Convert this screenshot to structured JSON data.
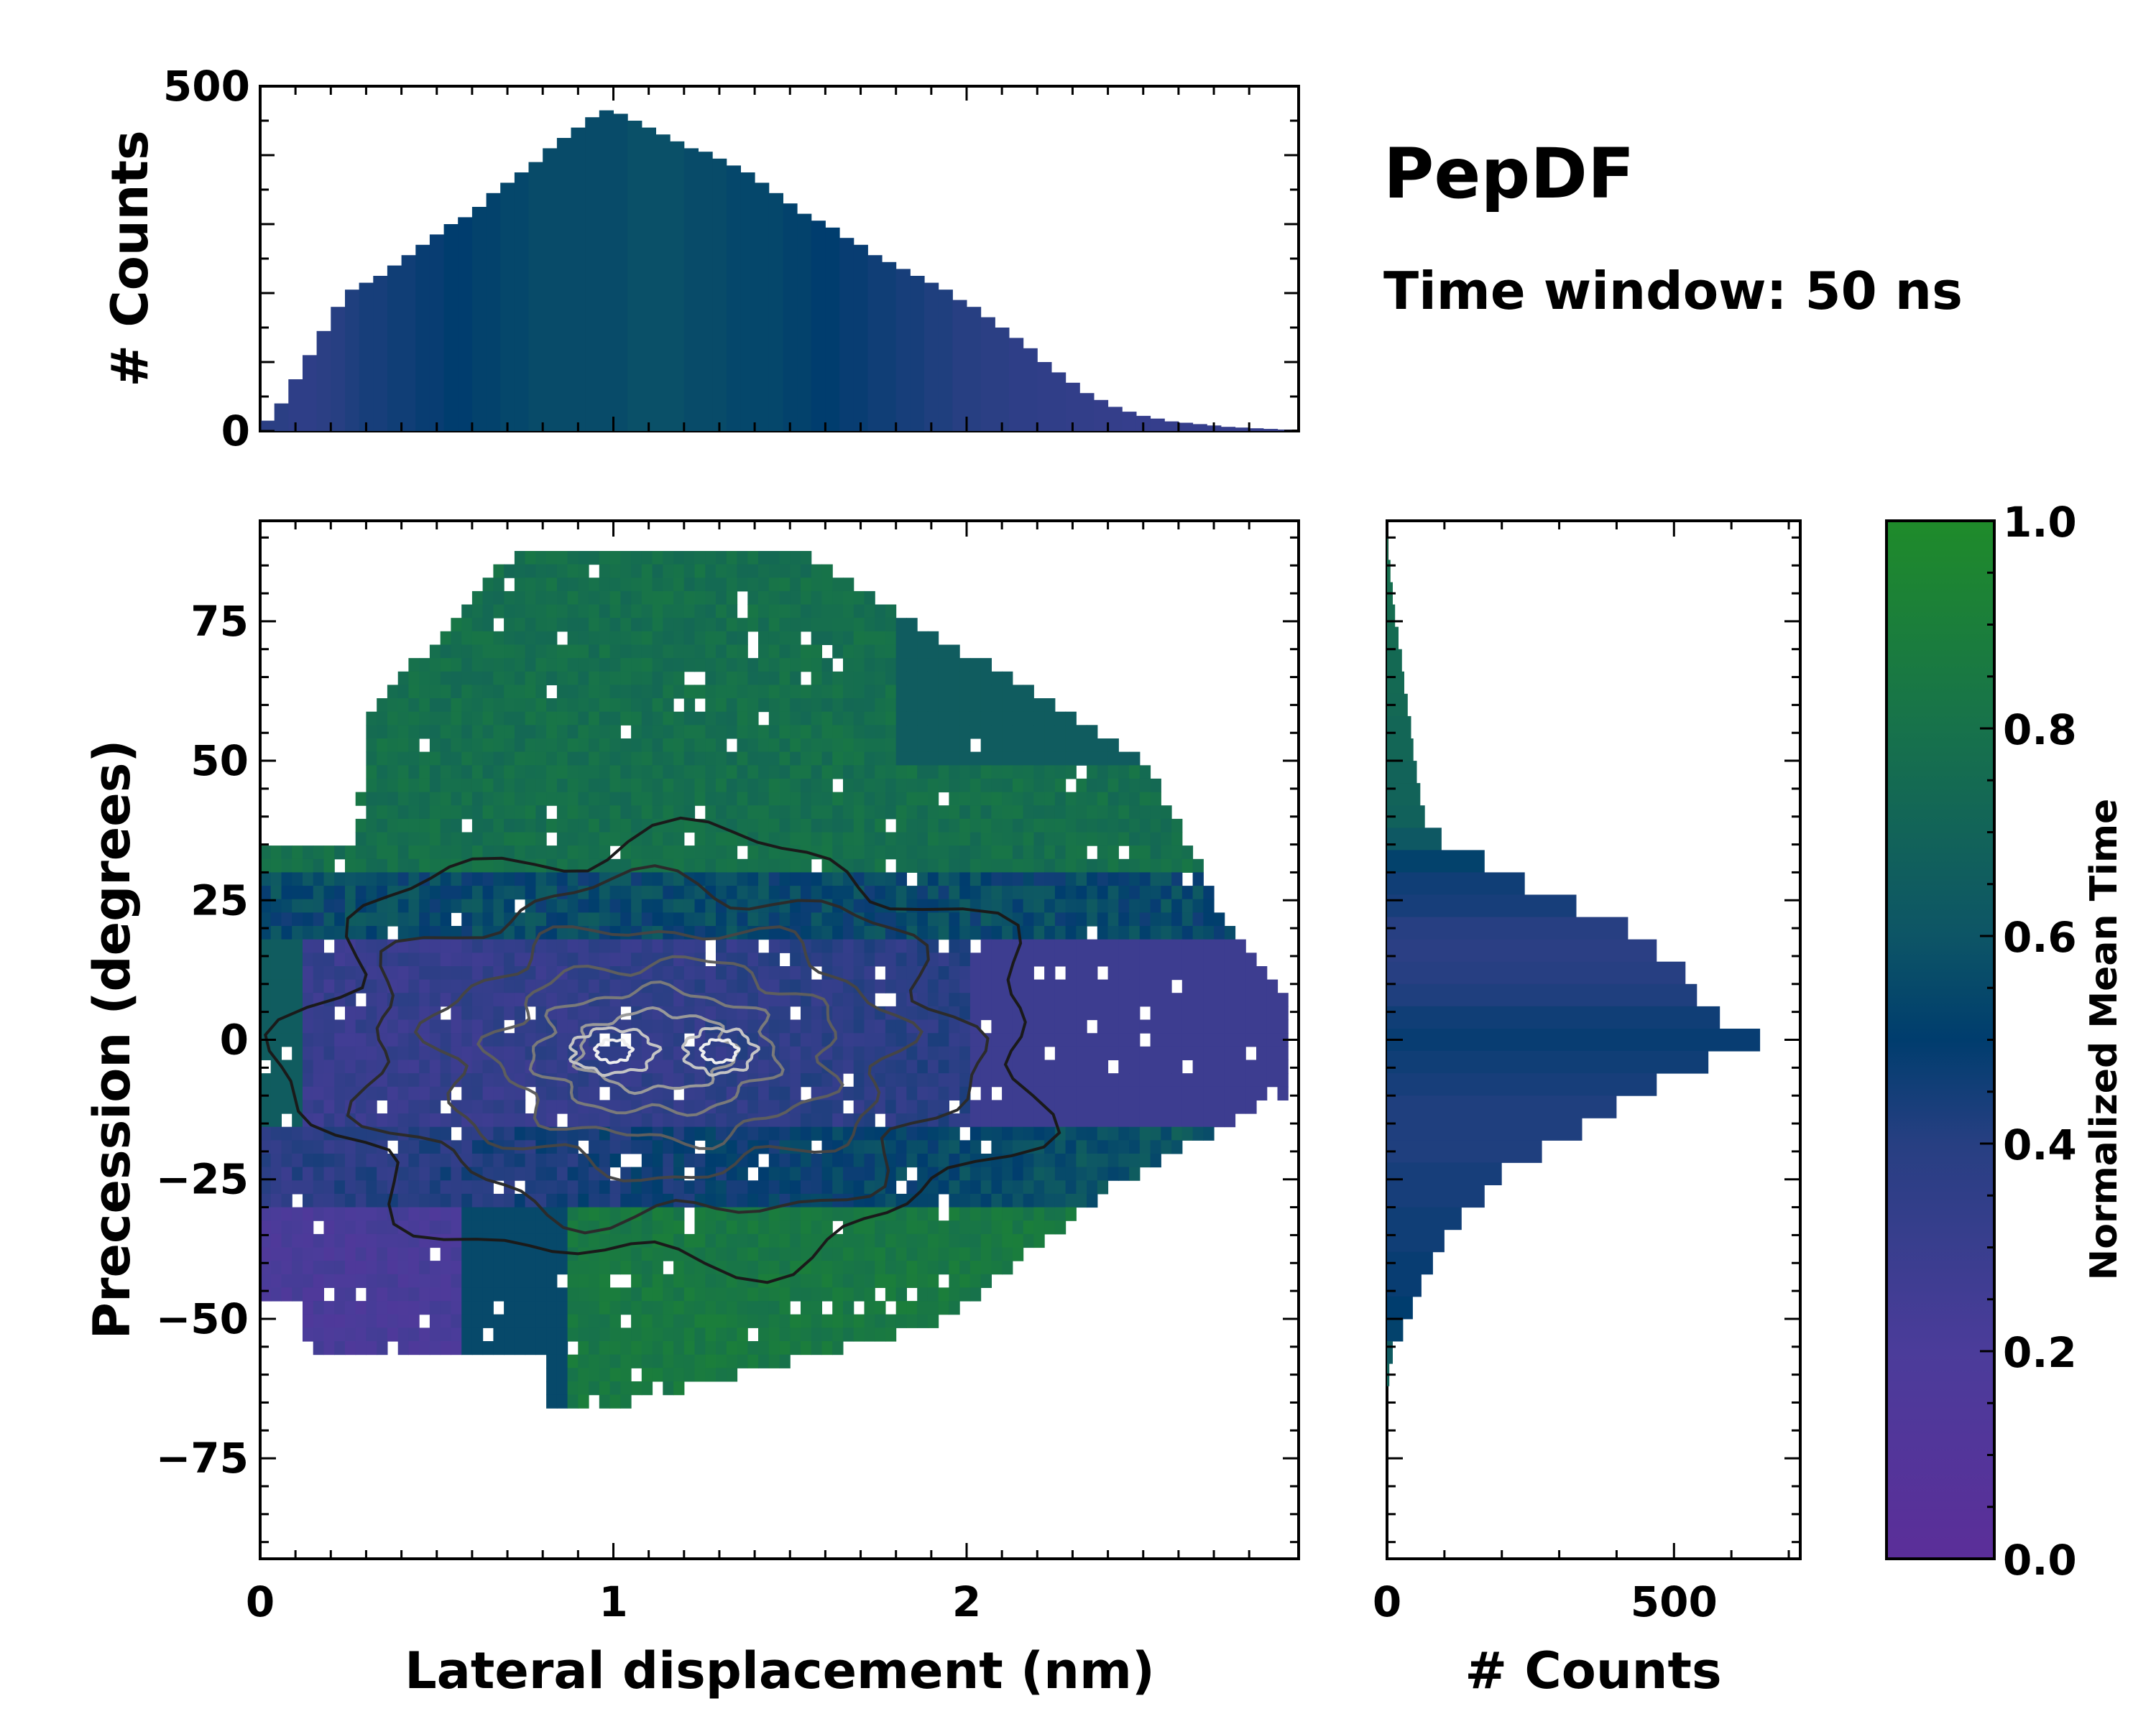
{
  "chart_data": [
    {
      "id": "marginal_x",
      "type": "bar",
      "ylabel": "# Counts",
      "xlim": [
        0,
        2.94
      ],
      "ylim": [
        0,
        500
      ],
      "yticks": [
        "0",
        "500"
      ],
      "color_note": "bars colored by normalized mean time (colormap viridis-like, dark blue/teal)",
      "x": [
        0.02,
        0.06,
        0.1,
        0.14,
        0.18,
        0.22,
        0.26,
        0.3,
        0.34,
        0.38,
        0.42,
        0.46,
        0.5,
        0.54,
        0.58,
        0.62,
        0.66,
        0.7,
        0.74,
        0.78,
        0.82,
        0.86,
        0.9,
        0.94,
        0.98,
        1.02,
        1.06,
        1.1,
        1.14,
        1.18,
        1.22,
        1.26,
        1.3,
        1.34,
        1.38,
        1.42,
        1.46,
        1.5,
        1.54,
        1.58,
        1.62,
        1.66,
        1.7,
        1.74,
        1.78,
        1.82,
        1.86,
        1.9,
        1.94,
        1.98,
        2.02,
        2.06,
        2.1,
        2.14,
        2.18,
        2.22,
        2.26,
        2.3,
        2.34,
        2.38,
        2.42,
        2.46,
        2.5,
        2.54,
        2.58,
        2.62,
        2.66,
        2.7,
        2.74,
        2.78,
        2.82,
        2.86,
        2.9
      ],
      "values": [
        15,
        40,
        75,
        110,
        145,
        180,
        205,
        215,
        225,
        240,
        255,
        270,
        285,
        300,
        310,
        325,
        345,
        360,
        375,
        390,
        410,
        425,
        440,
        455,
        465,
        460,
        450,
        440,
        430,
        420,
        410,
        405,
        395,
        385,
        375,
        360,
        345,
        330,
        315,
        305,
        295,
        280,
        270,
        255,
        245,
        235,
        225,
        215,
        205,
        190,
        180,
        165,
        150,
        135,
        120,
        100,
        85,
        70,
        55,
        45,
        35,
        28,
        22,
        18,
        14,
        12,
        10,
        8,
        6,
        5,
        4,
        3,
        2
      ],
      "bar_tone": [
        0.38,
        0.38,
        0.36,
        0.36,
        0.38,
        0.4,
        0.42,
        0.44,
        0.44,
        0.46,
        0.46,
        0.48,
        0.48,
        0.5,
        0.5,
        0.52,
        0.52,
        0.54,
        0.54,
        0.56,
        0.56,
        0.56,
        0.56,
        0.56,
        0.56,
        0.56,
        0.58,
        0.58,
        0.58,
        0.58,
        0.56,
        0.56,
        0.56,
        0.54,
        0.54,
        0.54,
        0.54,
        0.52,
        0.52,
        0.5,
        0.5,
        0.48,
        0.48,
        0.46,
        0.46,
        0.44,
        0.44,
        0.42,
        0.42,
        0.4,
        0.4,
        0.38,
        0.38,
        0.36,
        0.36,
        0.35,
        0.35,
        0.34,
        0.34,
        0.33,
        0.33,
        0.32,
        0.32,
        0.32,
        0.32,
        0.32,
        0.32,
        0.32,
        0.32,
        0.32,
        0.32,
        0.32,
        0.32
      ]
    },
    {
      "id": "heatmap",
      "type": "heatmap",
      "xlabel": "Lateral displacement (nm)",
      "ylabel": "Precession (degrees)",
      "xlim": [
        0,
        2.94
      ],
      "ylim": [
        -93,
        93
      ],
      "xticks": [
        "0",
        "1",
        "2"
      ],
      "yticks": [
        "75",
        "50",
        "25",
        "0",
        "−25",
        "−50",
        "−75"
      ],
      "ytick_values": [
        75,
        50,
        25,
        0,
        -25,
        -50,
        -75
      ],
      "xtick_values": [
        0,
        1,
        2
      ],
      "description_of_values": "cell color = normalized mean time; purple (low) near lateral 0-1 nm and precession -50..25 deg; green (high) at precession >30 and < -20; contour lines mark count density peaking near (1.0, 0) and (1.3, 0)",
      "density_peaks": [
        {
          "x": 1.0,
          "y": -2
        },
        {
          "x": 1.3,
          "y": -1
        }
      ]
    },
    {
      "id": "marginal_y",
      "type": "bar",
      "orientation": "horizontal",
      "xlabel": "# Counts",
      "xlim": [
        0,
        720
      ],
      "xticks": [
        "0",
        "500"
      ],
      "xtick_values": [
        0,
        500
      ],
      "y": [
        88,
        84,
        80,
        76,
        72,
        68,
        64,
        60,
        56,
        52,
        48,
        44,
        40,
        36,
        32,
        28,
        24,
        20,
        16,
        12,
        8,
        4,
        0,
        -4,
        -8,
        -12,
        -16,
        -20,
        -24,
        -28,
        -32,
        -36,
        -40,
        -44,
        -48,
        -52,
        -56,
        -60
      ],
      "values": [
        2,
        6,
        10,
        14,
        20,
        26,
        30,
        36,
        42,
        46,
        52,
        58,
        66,
        95,
        170,
        240,
        330,
        420,
        470,
        520,
        540,
        580,
        650,
        560,
        470,
        400,
        340,
        270,
        200,
        170,
        130,
        100,
        80,
        60,
        45,
        28,
        10,
        4
      ],
      "bar_tone": [
        0.78,
        0.78,
        0.77,
        0.76,
        0.75,
        0.74,
        0.74,
        0.73,
        0.72,
        0.72,
        0.7,
        0.7,
        0.68,
        0.62,
        0.52,
        0.46,
        0.44,
        0.4,
        0.38,
        0.4,
        0.42,
        0.46,
        0.48,
        0.46,
        0.44,
        0.42,
        0.42,
        0.42,
        0.44,
        0.44,
        0.46,
        0.46,
        0.48,
        0.48,
        0.5,
        0.52,
        0.64,
        0.7
      ]
    },
    {
      "id": "colorbar",
      "type": "colorbar",
      "label": "Normalized Mean Time",
      "range": [
        0.0,
        1.0
      ],
      "ticks": [
        "0.0",
        "0.2",
        "0.4",
        "0.6",
        "0.8",
        "1.0"
      ],
      "tick_values": [
        0.0,
        0.2,
        0.4,
        0.6,
        0.8,
        1.0
      ],
      "colormap": [
        [
          "0.0",
          "#5b2e99"
        ],
        [
          "0.2",
          "#4b3c9a"
        ],
        [
          "0.4",
          "#273f82"
        ],
        [
          "0.5",
          "#003d6e"
        ],
        [
          "0.6",
          "#0d5566"
        ],
        [
          "0.8",
          "#17724b"
        ],
        [
          "1.0",
          "#1f8b2a"
        ]
      ]
    }
  ],
  "annotations": {
    "title": "PepDF",
    "subtitle": "Time window: 50 ns"
  }
}
